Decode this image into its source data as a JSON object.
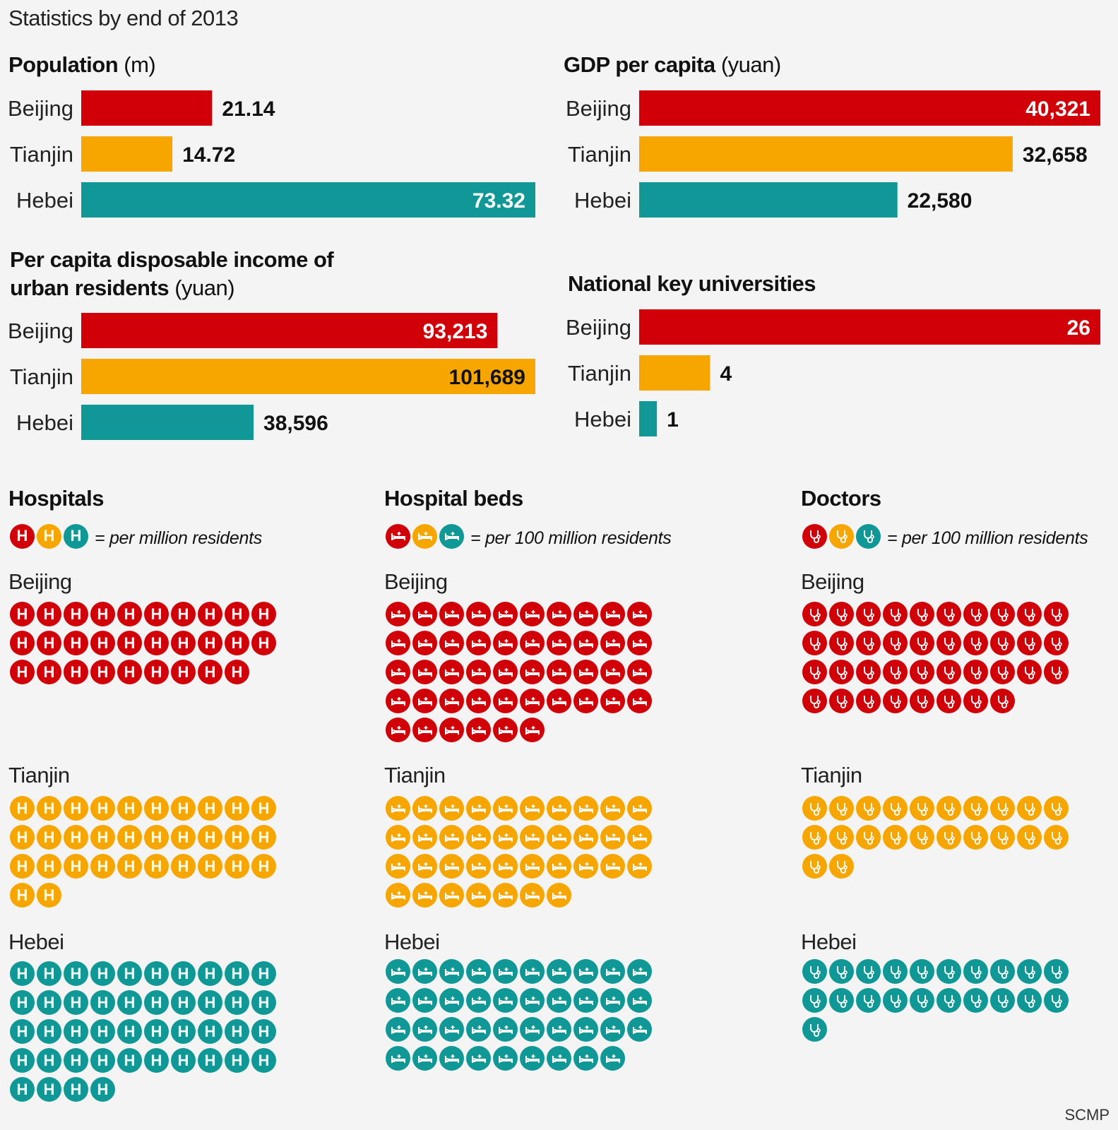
{
  "title": "Statistics by end of 2013",
  "source": "SCMP",
  "colors": {
    "Beijing": "#d10008",
    "Tianjin": "#f7a600",
    "Hebei": "#0f9896"
  },
  "chart_data": [
    {
      "type": "bar",
      "orientation": "horizontal",
      "title": "Population",
      "unit": "(m)",
      "categories": [
        "Beijing",
        "Tianjin",
        "Hebei"
      ],
      "values": [
        21.14,
        14.72,
        73.32
      ],
      "labels": [
        "21.14",
        "14.72",
        "73.32"
      ],
      "xlim": [
        0,
        73.32
      ]
    },
    {
      "type": "bar",
      "orientation": "horizontal",
      "title": "GDP per capita",
      "unit": "(yuan)",
      "categories": [
        "Beijing",
        "Tianjin",
        "Hebei"
      ],
      "values": [
        40321,
        32658,
        22580
      ],
      "labels": [
        "40,321",
        "32,658",
        "22,580"
      ],
      "xlim": [
        0,
        40321
      ]
    },
    {
      "type": "bar",
      "orientation": "horizontal",
      "title_lines": [
        "Per capita disposable income of",
        "urban residents"
      ],
      "unit": "(yuan)",
      "categories": [
        "Beijing",
        "Tianjin",
        "Hebei"
      ],
      "values": [
        93213,
        101689,
        38596
      ],
      "labels": [
        "93,213",
        "101,689",
        "38,596"
      ],
      "xlim": [
        0,
        101689
      ]
    },
    {
      "type": "bar",
      "orientation": "horizontal",
      "title": "National key universities",
      "unit": "",
      "categories": [
        "Beijing",
        "Tianjin",
        "Hebei"
      ],
      "values": [
        26,
        4,
        1
      ],
      "labels": [
        "26",
        "4",
        "1"
      ],
      "xlim": [
        0,
        26
      ]
    }
  ],
  "pictograms": [
    {
      "title": "Hospitals",
      "icon": "hospital-icon",
      "legend_note": "= per million residents",
      "counts": {
        "Beijing": 29,
        "Tianjin": 32,
        "Hebei": 44
      }
    },
    {
      "title": "Hospital beds",
      "icon": "hospital-bed-icon",
      "legend_note": "= per 100 million residents",
      "counts": {
        "Beijing": 46,
        "Tianjin": 37,
        "Hebei": 39
      }
    },
    {
      "title": "Doctors",
      "icon": "stethoscope-icon",
      "legend_note": "= per 100 million residents",
      "counts": {
        "Beijing": 38,
        "Tianjin": 22,
        "Hebei": 21
      }
    }
  ]
}
